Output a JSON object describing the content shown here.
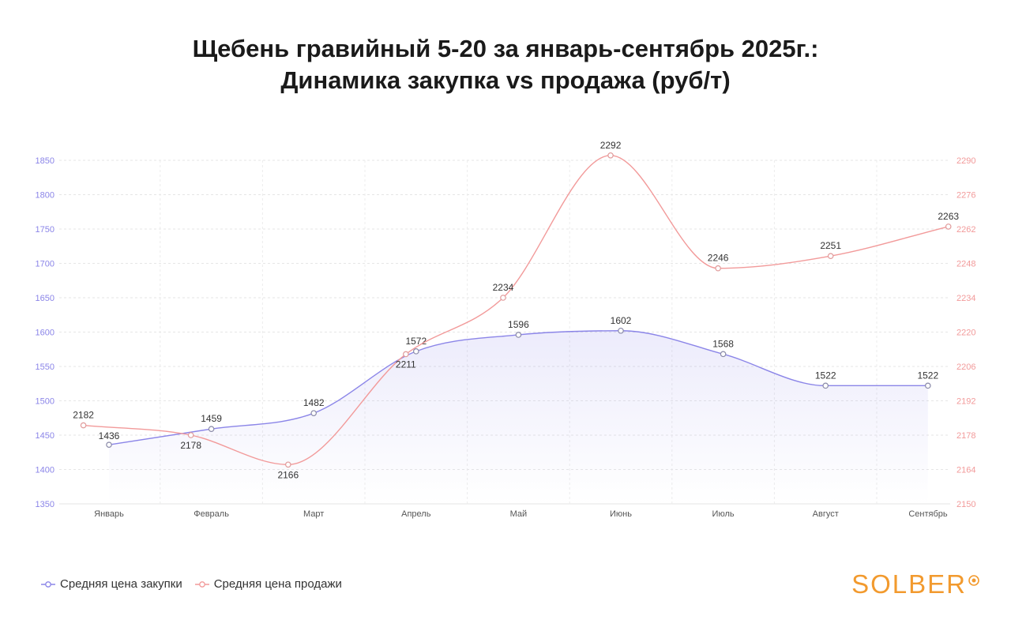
{
  "title": {
    "line1": "Щебень гравийный 5-20 за январь-сентябрь 2025г.:",
    "line2": "Динамика закупка vs продажа (руб/т)"
  },
  "chart_data": {
    "type": "line",
    "categories": [
      "Январь",
      "Февраль",
      "Март",
      "Апрель",
      "Май",
      "Июнь",
      "Июль",
      "Август",
      "Сентябрь"
    ],
    "series": [
      {
        "name": "Средняя цена закупки",
        "axis": "left",
        "color": "#8b85e8",
        "x": [
          0.0,
          1.0,
          2.0,
          3.0,
          4.0,
          5.0,
          6.0,
          7.0,
          8.0
        ],
        "values": [
          1436,
          1459,
          1482,
          1572,
          1596,
          1602,
          1568,
          1522,
          1522
        ]
      },
      {
        "name": "Средняя цена продажи",
        "axis": "right",
        "color": "#f29a9a",
        "x": [
          -0.25,
          0.8,
          1.75,
          2.9,
          3.85,
          4.9,
          5.95,
          7.05,
          8.2
        ],
        "values": [
          2182,
          2178,
          2166,
          2211,
          2234,
          2292,
          2246,
          2251,
          2263
        ]
      }
    ],
    "y_left": {
      "min": 1350,
      "max": 1850,
      "ticks": [
        "1350",
        "1400",
        "1450",
        "1500",
        "1550",
        "1600",
        "1650",
        "1700",
        "1750",
        "1800",
        "1850"
      ],
      "color": "#8b85e8"
    },
    "y_right": {
      "min": 2150,
      "max": 2290,
      "ticks": [
        "2150",
        "2164",
        "2178",
        "2192",
        "2206",
        "2220",
        "2234",
        "2248",
        "2262",
        "2276",
        "2290"
      ],
      "color": "#f29a9a"
    },
    "grid": true,
    "legend_position": "bottom-left"
  },
  "legend": [
    {
      "label": "Средняя цена закупки",
      "color": "#8b85e8"
    },
    {
      "label": "Средняя цена продажи",
      "color": "#f29a9a"
    }
  ],
  "logo": {
    "text": "SOLBER",
    "color": "#f29a2e"
  }
}
